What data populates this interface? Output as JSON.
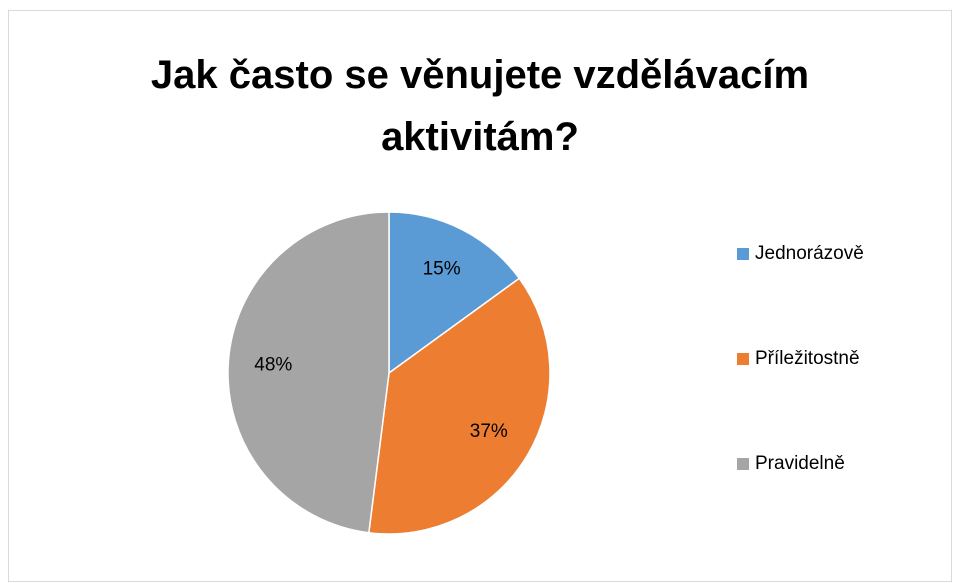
{
  "chart_data": {
    "type": "pie",
    "title": "Jak často se věnujete vzdělávacím aktivitám?",
    "categories": [
      "Jednorázově",
      "Příležitostně",
      "Pravidelně"
    ],
    "values": [
      15,
      37,
      48
    ],
    "value_labels": [
      "15%",
      "37%",
      "48%"
    ],
    "colors": [
      "#5b9bd5",
      "#ed7d31",
      "#a5a5a5"
    ],
    "legend": "right"
  }
}
